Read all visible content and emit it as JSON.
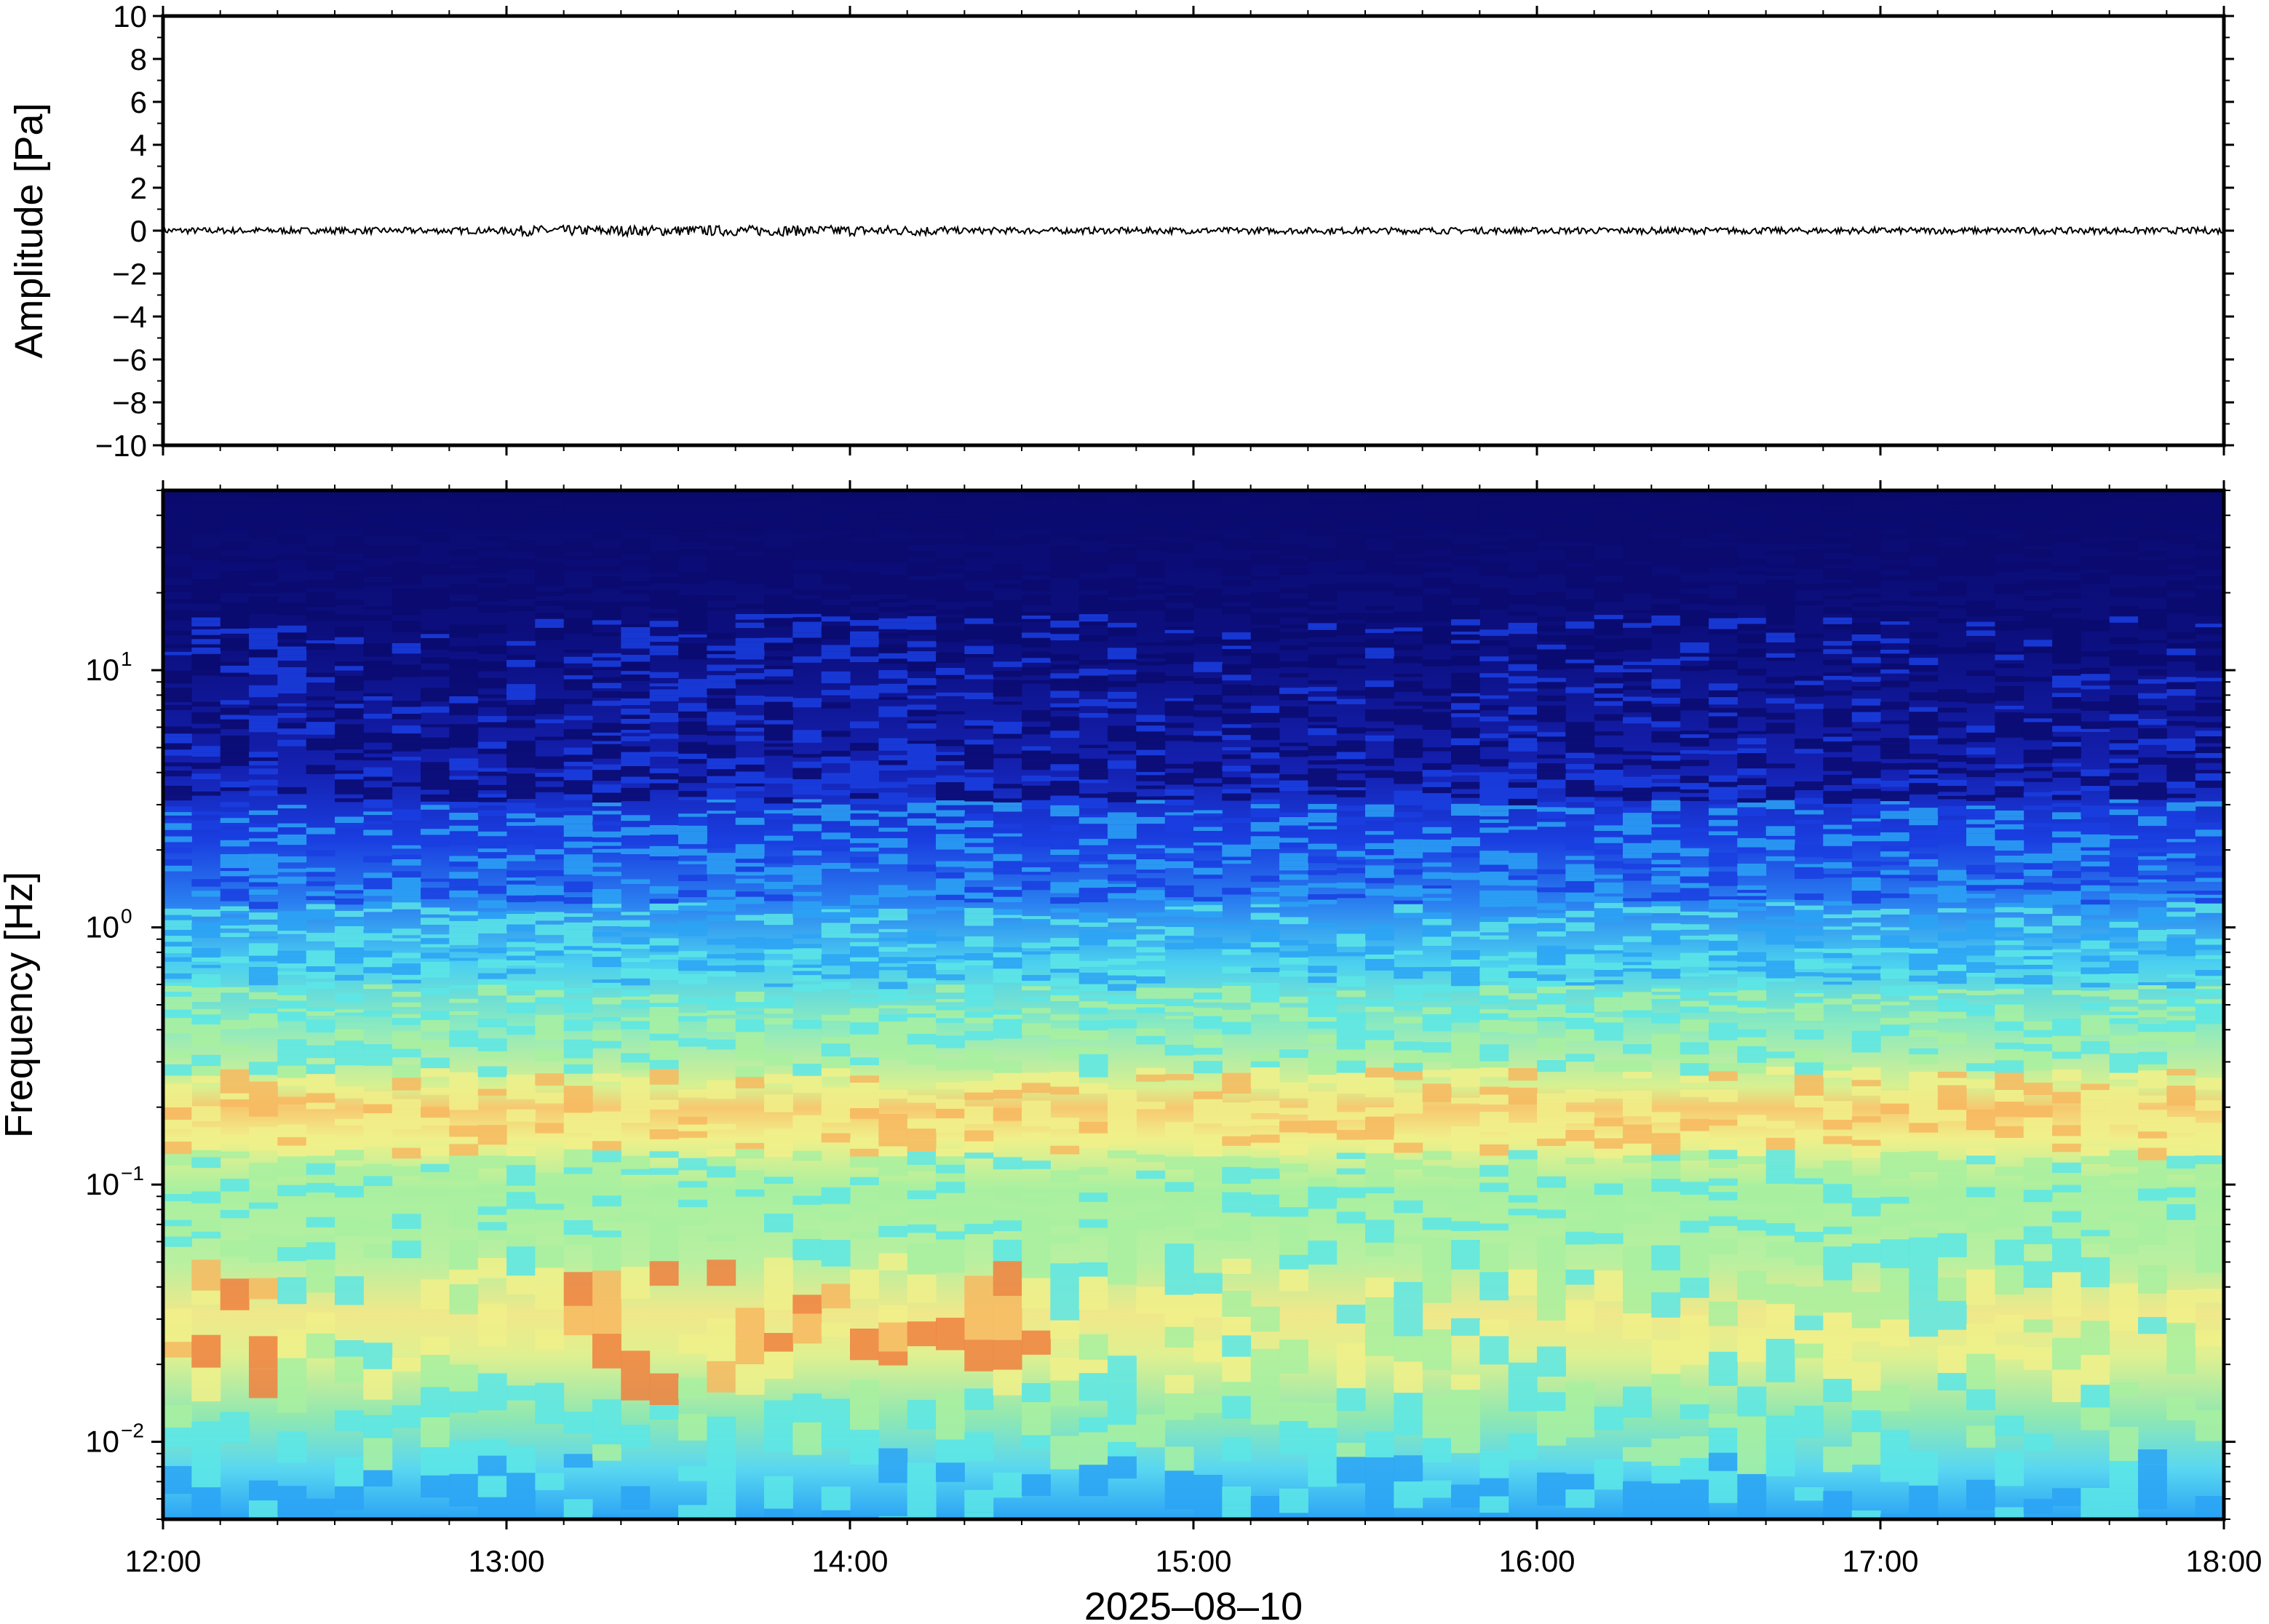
{
  "chart_data": [
    {
      "type": "line",
      "ylabel": "Amplitude [Pa]",
      "ylim": [
        -10,
        10
      ],
      "yticks": [
        "10",
        "8",
        "6",
        "4",
        "2",
        "0",
        "−2",
        "−4",
        "−6",
        "−8",
        "−10"
      ],
      "xlim": [
        "2025-08-10 12:00",
        "2025-08-10 18:00"
      ],
      "series": [
        {
          "description": "pressure trace near zero, about ±0.15 Pa",
          "baseline": 0,
          "amplitude_max": 0.15
        }
      ],
      "line_color": "#000000",
      "grid": false
    },
    {
      "type": "heatmap",
      "ylabel": "Frequency [Hz]",
      "yscale": "log",
      "ylim": [
        0.005,
        50
      ],
      "yticks": [
        {
          "base": "10",
          "exp": "1"
        },
        {
          "base": "10",
          "exp": "0"
        },
        {
          "base": "10",
          "exp": "−1"
        },
        {
          "base": "10",
          "exp": "−2"
        }
      ],
      "xlabel": "2025–08–10",
      "xticks": [
        "12:00",
        "13:00",
        "14:00",
        "15:00",
        "16:00",
        "17:00",
        "18:00"
      ],
      "xlim": [
        "12:00",
        "18:00"
      ],
      "colormap": "jet",
      "colors": [
        "#0a0a6e",
        "#1a3ee0",
        "#2ba3f5",
        "#5ce6e6",
        "#a8f0a0",
        "#f0f08a",
        "#f7b860",
        "#f08040"
      ],
      "grid": false
    }
  ]
}
